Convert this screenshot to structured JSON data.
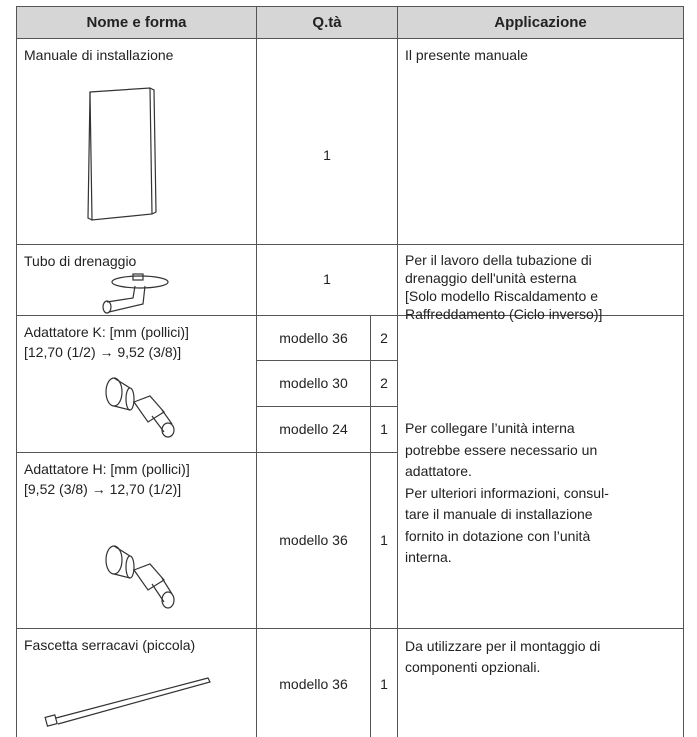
{
  "table": {
    "header": [
      "Nome e forma",
      "Q.tà",
      "Applicazione"
    ],
    "rows": [
      {
        "name": [
          "Manuale di installazione"
        ],
        "quantities": [
          {
            "qty": 1
          }
        ],
        "application": [
          "Il presente manuale"
        ]
      },
      {
        "name": [
          "Tubo di drenaggio"
        ],
        "quantities": [
          {
            "qty": 1
          }
        ],
        "application": [
          "Per il lavoro della tubazione di",
          "drenaggio dell'unità esterna",
          "[Solo modello Riscaldamento e",
          "Raffreddamento (Ciclo inverso)]"
        ]
      },
      {
        "name": [
          "Adattatore K: [mm (pollici)]",
          "[12,70 (1/2) → 9,52 (3/8)]"
        ],
        "quantities": [
          {
            "model": "modello 36",
            "qty": 2
          },
          {
            "model": "modello 30",
            "qty": 2
          },
          {
            "model": "modello 24",
            "qty": 1
          }
        ],
        "application": [
          "Per collegare l’unità interna",
          "potrebbe essere necessario un",
          "adattatore.",
          "Per ulteriori informazioni, consul-",
          "tare il manuale di installazione",
          "fornito in dotazione con l’unità",
          "interna."
        ]
      },
      {
        "name": [
          "Adattatore H: [mm (pollici)]",
          "[9,52 (3/8) → 12,70 (1/2)]"
        ],
        "quantities": [
          {
            "model": "modello 36",
            "qty": 1
          }
        ]
      },
      {
        "name": [
          "Fascetta serracavi (piccola)"
        ],
        "quantities": [
          {
            "model": "modello 36",
            "qty": 1
          }
        ],
        "application": [
          "Da utilizzare per il montaggio di",
          "componenti opzionali."
        ]
      }
    ]
  }
}
